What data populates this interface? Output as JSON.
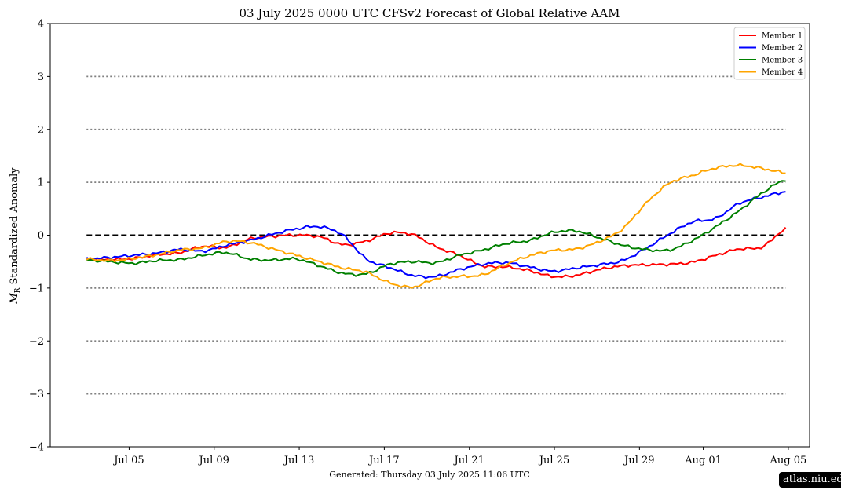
{
  "chart_data": {
    "type": "line",
    "title": "03  July  2025 0000 UTC   CFSv2 Forecast of Global Relative AAM",
    "ylabel_symbol": "M",
    "ylabel_sub": "R",
    "ylabel_text": "Standardized Anomaly",
    "footer": "Generated: Thursday  03  July  2025  11:06 UTC",
    "x_start": "2025-07-03",
    "x_end": "2025-08-04",
    "xlim": [
      "2025-07-01 07:00",
      "2025-08-06"
    ],
    "ylim": [
      -4,
      4
    ],
    "yticks": [
      -4,
      -3,
      -2,
      -1,
      0,
      1,
      2,
      3,
      4
    ],
    "ytick_labels": [
      "−4",
      "−3",
      "−2",
      "−1",
      "0",
      "1",
      "2",
      "3",
      "4"
    ],
    "xticks": [
      {
        "date": "2025-07-05",
        "label": "Jul 05"
      },
      {
        "date": "2025-07-09",
        "label": "Jul 09"
      },
      {
        "date": "2025-07-13",
        "label": "Jul 13"
      },
      {
        "date": "2025-07-17",
        "label": "Jul 17"
      },
      {
        "date": "2025-07-21",
        "label": "Jul 21"
      },
      {
        "date": "2025-07-25",
        "label": "Jul 25"
      },
      {
        "date": "2025-07-29",
        "label": "Jul 29"
      },
      {
        "date": "2025-08-01",
        "label": "Aug 01"
      },
      {
        "date": "2025-08-05",
        "label": "Aug 05"
      }
    ],
    "reference_lines": [
      {
        "y": 0,
        "style": "dashed",
        "color": "#000000"
      },
      {
        "y": 1,
        "style": "dotted",
        "color": "#808080"
      },
      {
        "y": 2,
        "style": "dotted",
        "color": "#808080"
      },
      {
        "y": 3,
        "style": "dotted",
        "color": "#808080"
      },
      {
        "y": -1,
        "style": "dotted",
        "color": "#808080"
      },
      {
        "y": -2,
        "style": "dotted",
        "color": "#808080"
      },
      {
        "y": -3,
        "style": "dotted",
        "color": "#808080"
      }
    ],
    "legend_position": "top-right",
    "series": [
      {
        "name": "Member 1",
        "color": "#ff0000",
        "values": [
          -0.45,
          -0.46,
          -0.44,
          -0.37,
          -0.33,
          -0.21,
          -0.23,
          -0.07,
          -0.02,
          0.0,
          -0.03,
          -0.18,
          -0.11,
          0.04,
          0.01,
          -0.22,
          -0.38,
          -0.58,
          -0.6,
          -0.67,
          -0.78,
          -0.76,
          -0.65,
          -0.58,
          -0.56,
          -0.55,
          -0.51,
          -0.38,
          -0.26,
          -0.22,
          0.12
        ]
      },
      {
        "name": "Member 2",
        "color": "#0000ff",
        "values": [
          -0.45,
          -0.42,
          -0.38,
          -0.34,
          -0.27,
          -0.3,
          -0.19,
          -0.1,
          0.02,
          0.12,
          0.16,
          0.0,
          -0.45,
          -0.61,
          -0.76,
          -0.78,
          -0.65,
          -0.55,
          -0.52,
          -0.6,
          -0.68,
          -0.62,
          -0.56,
          -0.48,
          -0.25,
          0.02,
          0.25,
          0.32,
          0.6,
          0.72,
          0.82
        ]
      },
      {
        "name": "Member 3",
        "color": "#008000",
        "values": [
          -0.47,
          -0.5,
          -0.53,
          -0.48,
          -0.46,
          -0.38,
          -0.33,
          -0.45,
          -0.47,
          -0.45,
          -0.58,
          -0.72,
          -0.73,
          -0.55,
          -0.5,
          -0.52,
          -0.38,
          -0.28,
          -0.16,
          -0.1,
          0.05,
          0.08,
          -0.05,
          -0.19,
          -0.27,
          -0.28,
          -0.1,
          0.16,
          0.46,
          0.8,
          1.05
        ]
      },
      {
        "name": "Member 4",
        "color": "#ffa500",
        "values": [
          -0.45,
          -0.48,
          -0.44,
          -0.37,
          -0.28,
          -0.24,
          -0.12,
          -0.14,
          -0.26,
          -0.38,
          -0.5,
          -0.62,
          -0.7,
          -0.9,
          -0.98,
          -0.82,
          -0.78,
          -0.75,
          -0.55,
          -0.39,
          -0.29,
          -0.26,
          -0.12,
          0.12,
          0.6,
          0.98,
          1.13,
          1.27,
          1.32,
          1.26,
          1.18
        ]
      }
    ]
  },
  "badge": {
    "text": "atlas.niu.edu"
  }
}
